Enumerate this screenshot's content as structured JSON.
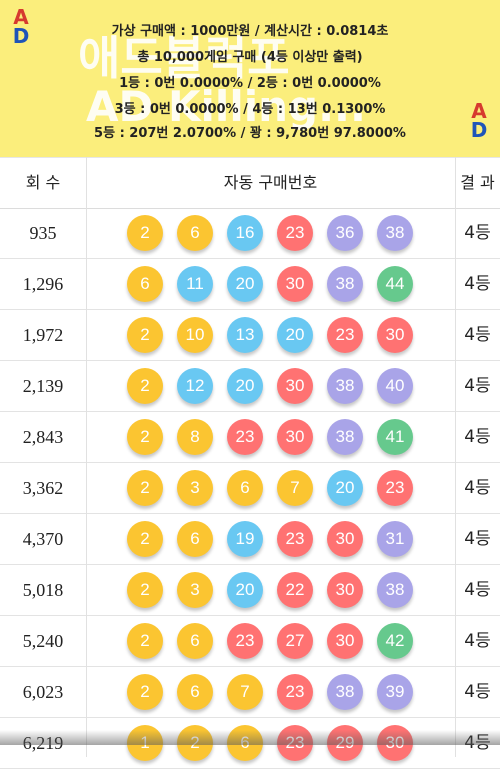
{
  "banner": {
    "info_lines": [
      "가상 구매액 : 1000만원 / 계산시간 : 0.0814초",
      "총 10,000게임 구매 (4등 이상만 출력)",
      "1등 : 0번 0.0000% / 2등 : 0번 0.0000%",
      "3등 : 0번 0.0000% / 4등 : 13번 0.1300%",
      "5등 : 207번 2.0700% / 꽝 : 9,780번 97.8000%"
    ],
    "ad_badge_letters": [
      "A",
      "D"
    ],
    "watermark_line1": "애드블럭포",
    "watermark_line2": "AD Killing..."
  },
  "table": {
    "headers": {
      "round": "회 수",
      "numbers": "자동 구매번호",
      "result": "결 과"
    },
    "rows": [
      {
        "round": "935",
        "result": "4등",
        "balls": [
          {
            "n": "2",
            "c": "y"
          },
          {
            "n": "6",
            "c": "y"
          },
          {
            "n": "16",
            "c": "b"
          },
          {
            "n": "23",
            "c": "r"
          },
          {
            "n": "36",
            "c": "p"
          },
          {
            "n": "38",
            "c": "p"
          }
        ]
      },
      {
        "round": "1,296",
        "result": "4등",
        "balls": [
          {
            "n": "6",
            "c": "y"
          },
          {
            "n": "11",
            "c": "b"
          },
          {
            "n": "20",
            "c": "b"
          },
          {
            "n": "30",
            "c": "r"
          },
          {
            "n": "38",
            "c": "p"
          },
          {
            "n": "44",
            "c": "gr"
          }
        ]
      },
      {
        "round": "1,972",
        "result": "4등",
        "balls": [
          {
            "n": "2",
            "c": "y"
          },
          {
            "n": "10",
            "c": "y"
          },
          {
            "n": "13",
            "c": "b"
          },
          {
            "n": "20",
            "c": "b"
          },
          {
            "n": "23",
            "c": "r"
          },
          {
            "n": "30",
            "c": "r"
          }
        ]
      },
      {
        "round": "2,139",
        "result": "4등",
        "balls": [
          {
            "n": "2",
            "c": "y"
          },
          {
            "n": "12",
            "c": "b"
          },
          {
            "n": "20",
            "c": "b"
          },
          {
            "n": "30",
            "c": "r"
          },
          {
            "n": "38",
            "c": "p"
          },
          {
            "n": "40",
            "c": "p"
          }
        ]
      },
      {
        "round": "2,843",
        "result": "4등",
        "balls": [
          {
            "n": "2",
            "c": "y"
          },
          {
            "n": "8",
            "c": "y"
          },
          {
            "n": "23",
            "c": "r"
          },
          {
            "n": "30",
            "c": "r"
          },
          {
            "n": "38",
            "c": "p"
          },
          {
            "n": "41",
            "c": "gr"
          }
        ]
      },
      {
        "round": "3,362",
        "result": "4등",
        "balls": [
          {
            "n": "2",
            "c": "y"
          },
          {
            "n": "3",
            "c": "y"
          },
          {
            "n": "6",
            "c": "y"
          },
          {
            "n": "7",
            "c": "y"
          },
          {
            "n": "20",
            "c": "b"
          },
          {
            "n": "23",
            "c": "r"
          }
        ]
      },
      {
        "round": "4,370",
        "result": "4등",
        "balls": [
          {
            "n": "2",
            "c": "y"
          },
          {
            "n": "6",
            "c": "y"
          },
          {
            "n": "19",
            "c": "b"
          },
          {
            "n": "23",
            "c": "r"
          },
          {
            "n": "30",
            "c": "r"
          },
          {
            "n": "31",
            "c": "p"
          }
        ]
      },
      {
        "round": "5,018",
        "result": "4등",
        "balls": [
          {
            "n": "2",
            "c": "y"
          },
          {
            "n": "3",
            "c": "y"
          },
          {
            "n": "20",
            "c": "b"
          },
          {
            "n": "22",
            "c": "r"
          },
          {
            "n": "30",
            "c": "r"
          },
          {
            "n": "38",
            "c": "p"
          }
        ]
      },
      {
        "round": "5,240",
        "result": "4등",
        "balls": [
          {
            "n": "2",
            "c": "y"
          },
          {
            "n": "6",
            "c": "y"
          },
          {
            "n": "23",
            "c": "r"
          },
          {
            "n": "27",
            "c": "r"
          },
          {
            "n": "30",
            "c": "r"
          },
          {
            "n": "42",
            "c": "gr"
          }
        ]
      },
      {
        "round": "6,023",
        "result": "4등",
        "balls": [
          {
            "n": "2",
            "c": "y"
          },
          {
            "n": "6",
            "c": "y"
          },
          {
            "n": "7",
            "c": "y"
          },
          {
            "n": "23",
            "c": "r"
          },
          {
            "n": "38",
            "c": "p"
          },
          {
            "n": "39",
            "c": "p"
          }
        ]
      },
      {
        "round": "6,219",
        "result": "4등",
        "balls": [
          {
            "n": "1",
            "c": "y"
          },
          {
            "n": "2",
            "c": "y"
          },
          {
            "n": "6",
            "c": "y"
          },
          {
            "n": "23",
            "c": "r"
          },
          {
            "n": "29",
            "c": "r"
          },
          {
            "n": "30",
            "c": "r"
          }
        ]
      }
    ]
  },
  "colors": {
    "banner_bg": "#fbee7c",
    "ball_yellow": "#fbc531",
    "ball_blue": "#69c8f2",
    "ball_red": "#ff7272",
    "ball_purple": "#a9a4e8",
    "ball_green": "#66c98d"
  }
}
